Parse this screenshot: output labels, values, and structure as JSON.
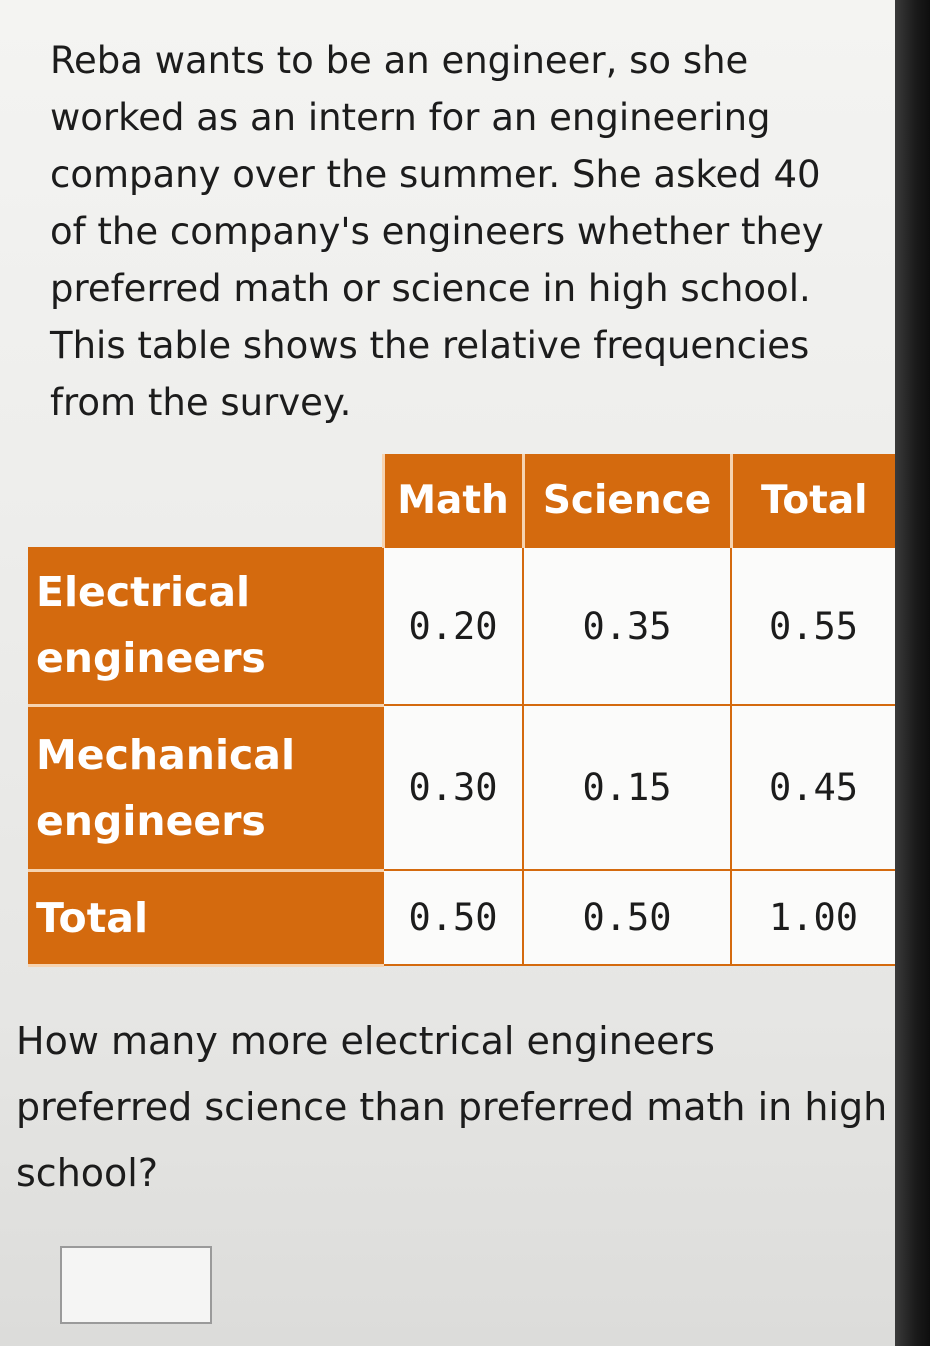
{
  "problem": {
    "intro": "Reba wants to be an engineer, so she worked as an intern for an engineering company over the summer. She asked 40 of the company's engineers whether they preferred math or science in high school. This table shows the relative frequencies from the survey.",
    "question": "How many more electrical engineers preferred science than preferred math in high school?"
  },
  "table": {
    "headers": [
      "Math",
      "Science",
      "Total"
    ],
    "rows": [
      {
        "label": "Electrical engineers",
        "values": [
          "0.20",
          "0.35",
          "0.55"
        ]
      },
      {
        "label": "Mechanical engineers",
        "values": [
          "0.30",
          "0.15",
          "0.45"
        ]
      },
      {
        "label": "Total",
        "values": [
          "0.50",
          "0.50",
          "1.00"
        ]
      }
    ]
  },
  "answer": {
    "value": ""
  },
  "colors": {
    "header_orange": "#d46a0e",
    "cell_bg": "#fbfbfa",
    "text": "#1c1c1c"
  }
}
